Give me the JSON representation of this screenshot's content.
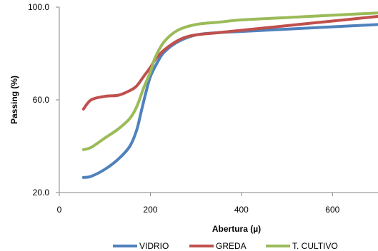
{
  "chart_data": {
    "type": "line",
    "title": "",
    "xlabel": "Abertura (µ)",
    "ylabel": "Passing (%)",
    "xlim": [
      0,
      700
    ],
    "ylim": [
      20,
      100
    ],
    "x_ticks": [
      0,
      200,
      400,
      600
    ],
    "x_tick_labels": [
      "0",
      "200",
      "400",
      "600"
    ],
    "y_ticks": [
      20,
      60,
      100
    ],
    "y_tick_labels": [
      "20.0",
      "60.0",
      "100.0"
    ],
    "grid": false,
    "legend_position": "bottom",
    "series": [
      {
        "name": "VIDRIO",
        "color": "#4f81bd",
        "points": [
          [
            53,
            26.5
          ],
          [
            70,
            27
          ],
          [
            100,
            30
          ],
          [
            130,
            34.5
          ],
          [
            155,
            40
          ],
          [
            170,
            47
          ],
          [
            180,
            55
          ],
          [
            190,
            63
          ],
          [
            200,
            70
          ],
          [
            215,
            76
          ],
          [
            230,
            80.5
          ],
          [
            260,
            85
          ],
          [
            300,
            88
          ],
          [
            350,
            89
          ],
          [
            400,
            89.5
          ],
          [
            500,
            90.5
          ],
          [
            600,
            91.5
          ],
          [
            700,
            92.5
          ]
        ]
      },
      {
        "name": "GREDA",
        "color": "#c0504d",
        "points": [
          [
            53,
            56
          ],
          [
            70,
            60
          ],
          [
            100,
            61.5
          ],
          [
            130,
            62
          ],
          [
            155,
            64
          ],
          [
            170,
            66
          ],
          [
            185,
            70
          ],
          [
            200,
            74
          ],
          [
            215,
            78.5
          ],
          [
            240,
            83
          ],
          [
            270,
            86.5
          ],
          [
            300,
            88
          ],
          [
            350,
            89
          ],
          [
            400,
            90
          ],
          [
            500,
            92
          ],
          [
            600,
            94
          ],
          [
            700,
            96
          ]
        ]
      },
      {
        "name": "T. CULTIVO",
        "color": "#9bbb59",
        "points": [
          [
            53,
            38.5
          ],
          [
            70,
            39.5
          ],
          [
            100,
            43.5
          ],
          [
            130,
            47.5
          ],
          [
            155,
            52
          ],
          [
            170,
            57
          ],
          [
            185,
            65
          ],
          [
            200,
            72
          ],
          [
            210,
            78
          ],
          [
            230,
            85
          ],
          [
            260,
            90
          ],
          [
            300,
            92.5
          ],
          [
            350,
            93.5
          ],
          [
            400,
            94.5
          ],
          [
            500,
            95.5
          ],
          [
            600,
            96.5
          ],
          [
            700,
            97.5
          ]
        ]
      }
    ]
  }
}
